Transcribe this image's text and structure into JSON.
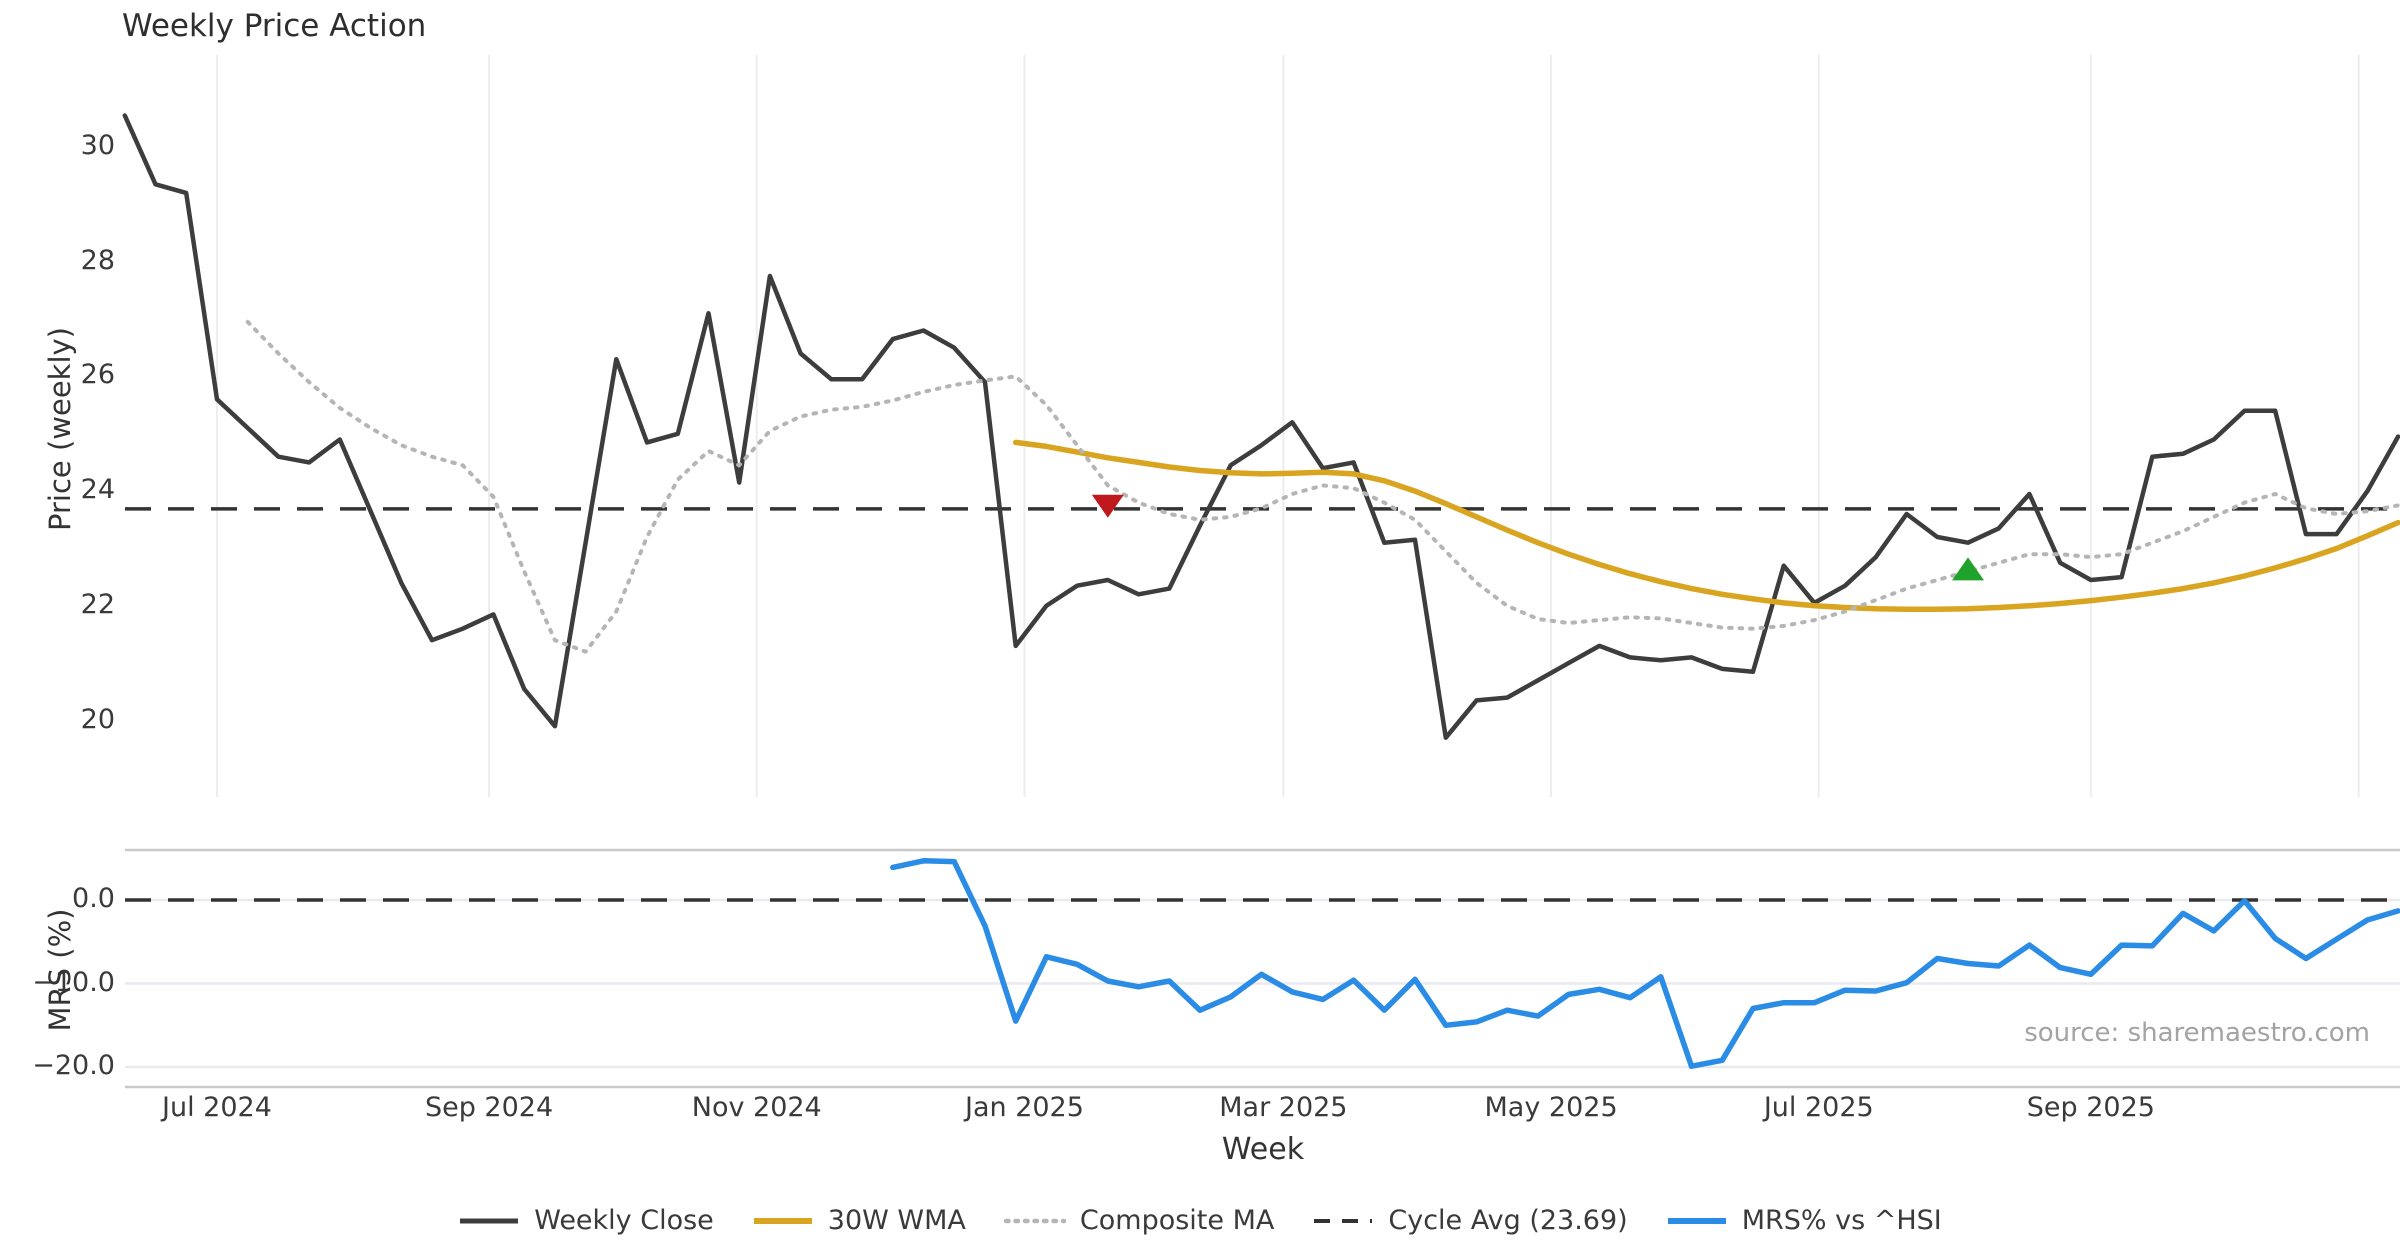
{
  "title": "Weekly Price Action",
  "xlabel": "Week",
  "source": "source: sharemaestro.com",
  "price_panel": {
    "ylabel": "Price (weekly)",
    "yticks": [
      "30",
      "28",
      "26",
      "24",
      "22",
      "20"
    ],
    "ytick_values": [
      30,
      28,
      26,
      24,
      22,
      20
    ]
  },
  "mrs_panel": {
    "ylabel": "MRS (%)",
    "yticks": [
      "0.0",
      "−10.0",
      "−20.0"
    ],
    "ytick_values": [
      0,
      -10,
      -20
    ]
  },
  "legend": {
    "items": [
      {
        "label": "Weekly Close",
        "style": "solid",
        "color_key": "close"
      },
      {
        "label": "30W WMA",
        "style": "solid",
        "color_key": "wma"
      },
      {
        "label": "Composite MA",
        "style": "dotted",
        "color_key": "composite"
      },
      {
        "label": "Cycle Avg (23.69)",
        "style": "dashed",
        "color_key": "cycle"
      },
      {
        "label": "MRS% vs ^HSI",
        "style": "solid",
        "color_key": "mrs"
      }
    ]
  },
  "colors": {
    "close": "#3d3d3d",
    "wma": "#d9a521",
    "composite": "#b5b5b5",
    "cycle": "#333333",
    "mrs": "#2b8ce6",
    "red_marker": "#bf181d",
    "green_marker": "#1fa32b",
    "grid": "#ededed",
    "mrs_grid": "#e9e9ef",
    "spine": "#c9c9c9"
  },
  "chart_data": {
    "type": "line",
    "title": "Weekly Price Action",
    "xlabel": "Week",
    "ylabel_top": "Price (weekly)",
    "ylabel_bottom": "MRS (%)",
    "cycle_avg": 23.69,
    "price_ylim": [
      19.3,
      31.2
    ],
    "mrs_ylim": [
      -22.5,
      6.0
    ],
    "legend_position": "bottom-center",
    "grid": "vertical-months-top, horizontal-bottom",
    "weeks": [
      "2024-06-10",
      "2024-06-17",
      "2024-06-24",
      "2024-07-01",
      "2024-07-08",
      "2024-07-15",
      "2024-07-22",
      "2024-07-29",
      "2024-08-05",
      "2024-08-12",
      "2024-08-19",
      "2024-08-26",
      "2024-09-02",
      "2024-09-09",
      "2024-09-16",
      "2024-09-23",
      "2024-09-30",
      "2024-10-07",
      "2024-10-14",
      "2024-10-21",
      "2024-10-28",
      "2024-11-04",
      "2024-11-11",
      "2024-11-18",
      "2024-11-25",
      "2024-12-02",
      "2024-12-09",
      "2024-12-16",
      "2024-12-23",
      "2024-12-30",
      "2025-01-06",
      "2025-01-13",
      "2025-01-20",
      "2025-01-27",
      "2025-02-03",
      "2025-02-10",
      "2025-02-17",
      "2025-02-24",
      "2025-03-03",
      "2025-03-10",
      "2025-03-17",
      "2025-03-24",
      "2025-03-31",
      "2025-04-07",
      "2025-04-14",
      "2025-04-21",
      "2025-04-28",
      "2025-05-05",
      "2025-05-12",
      "2025-05-19",
      "2025-05-26",
      "2025-06-02",
      "2025-06-09",
      "2025-06-16",
      "2025-06-23",
      "2025-06-30",
      "2025-07-07",
      "2025-07-14",
      "2025-07-21",
      "2025-07-28",
      "2025-08-04",
      "2025-08-11",
      "2025-08-18",
      "2025-08-25",
      "2025-09-01",
      "2025-09-08",
      "2025-09-15",
      "2025-09-22",
      "2025-09-29",
      "2025-10-06",
      "2025-10-13",
      "2025-10-20",
      "2025-10-27",
      "2025-11-03",
      "2025-11-10"
    ],
    "xticks": [
      {
        "label": "Jul 2024",
        "date": "2024-07-01"
      },
      {
        "label": "Sep 2024",
        "date": "2024-09-01"
      },
      {
        "label": "Nov 2024",
        "date": "2024-11-01"
      },
      {
        "label": "Jan 2025",
        "date": "2025-01-01"
      },
      {
        "label": "Mar 2025",
        "date": "2025-03-01"
      },
      {
        "label": "May 2025",
        "date": "2025-05-01"
      },
      {
        "label": "Jul 2025",
        "date": "2025-07-01"
      },
      {
        "label": "Sep 2025",
        "date": "2025-09-01"
      },
      {
        "label": "",
        "date": "2025-11-01"
      }
    ],
    "series": [
      {
        "name": "Weekly Close",
        "panel": "price",
        "color_key": "close",
        "style": "solid",
        "width": 4.5,
        "values": [
          30.55,
          29.35,
          29.2,
          25.6,
          25.1,
          24.6,
          24.5,
          24.9,
          23.65,
          22.4,
          21.4,
          21.6,
          21.85,
          20.55,
          19.9,
          23.1,
          26.3,
          24.85,
          25.0,
          27.1,
          24.15,
          27.75,
          26.4,
          25.95,
          25.95,
          26.65,
          26.8,
          26.5,
          25.9,
          21.3,
          22.0,
          22.35,
          22.45,
          22.2,
          22.3,
          23.4,
          24.45,
          24.8,
          25.2,
          24.4,
          24.5,
          23.1,
          23.15,
          19.7,
          20.35,
          20.4,
          20.7,
          21.0,
          21.3,
          21.1,
          21.05,
          21.1,
          20.9,
          20.85,
          22.7,
          22.05,
          22.35,
          22.85,
          23.6,
          23.2,
          23.1,
          23.35,
          23.95,
          22.75,
          22.45,
          22.5,
          24.6,
          24.65,
          24.9,
          25.4,
          25.4,
          23.25,
          23.25,
          24.0,
          24.95
        ]
      },
      {
        "name": "30W WMA",
        "panel": "price",
        "color_key": "wma",
        "style": "solid",
        "width": 5.5,
        "values": [
          null,
          null,
          null,
          null,
          null,
          null,
          null,
          null,
          null,
          null,
          null,
          null,
          null,
          null,
          null,
          null,
          null,
          null,
          null,
          null,
          null,
          null,
          null,
          null,
          null,
          null,
          null,
          null,
          null,
          24.85,
          24.78,
          24.68,
          24.58,
          24.5,
          24.42,
          24.36,
          24.32,
          24.3,
          24.31,
          24.33,
          24.3,
          24.18,
          24.0,
          23.78,
          23.55,
          23.32,
          23.1,
          22.9,
          22.72,
          22.56,
          22.42,
          22.3,
          22.2,
          22.12,
          22.05,
          22.0,
          21.97,
          21.95,
          21.94,
          21.94,
          21.95,
          21.97,
          22.0,
          22.04,
          22.09,
          22.15,
          22.22,
          22.3,
          22.4,
          22.52,
          22.66,
          22.82,
          23.0,
          23.22,
          23.45
        ]
      },
      {
        "name": "Composite MA",
        "panel": "price",
        "color_key": "composite",
        "style": "dotted",
        "width": 4,
        "values": [
          null,
          null,
          null,
          null,
          26.95,
          26.4,
          25.9,
          25.45,
          25.1,
          24.8,
          24.6,
          24.45,
          23.9,
          22.6,
          21.4,
          21.2,
          21.9,
          23.2,
          24.2,
          24.7,
          24.45,
          25.05,
          25.3,
          25.42,
          25.47,
          25.58,
          25.73,
          25.85,
          25.93,
          26.0,
          25.5,
          24.8,
          24.1,
          23.8,
          23.6,
          23.5,
          23.55,
          23.7,
          23.95,
          24.1,
          24.05,
          23.8,
          23.5,
          22.95,
          22.4,
          22.0,
          21.77,
          21.7,
          21.75,
          21.8,
          21.78,
          21.7,
          21.62,
          21.6,
          21.65,
          21.75,
          21.9,
          22.1,
          22.3,
          22.45,
          22.6,
          22.75,
          22.9,
          22.9,
          22.85,
          22.9,
          23.1,
          23.3,
          23.55,
          23.8,
          23.95,
          23.7,
          23.6,
          23.65,
          23.75
        ]
      },
      {
        "name": "MRS% vs ^HSI",
        "panel": "mrs",
        "color_key": "mrs",
        "style": "solid",
        "width": 5.5,
        "values": [
          null,
          null,
          null,
          null,
          null,
          null,
          null,
          null,
          null,
          null,
          null,
          null,
          null,
          null,
          null,
          null,
          null,
          null,
          null,
          null,
          null,
          null,
          null,
          null,
          null,
          3.9,
          4.7,
          4.6,
          -3.1,
          -14.5,
          -6.8,
          -7.7,
          -9.7,
          -10.4,
          -9.7,
          -13.2,
          -11.6,
          -8.9,
          -11.0,
          -11.9,
          -9.6,
          -13.2,
          -9.5,
          -15.0,
          -14.6,
          -13.2,
          -13.9,
          -11.3,
          -10.7,
          -11.7,
          -9.2,
          -19.9,
          -19.2,
          -13.0,
          -12.3,
          -12.3,
          -10.8,
          -10.9,
          -9.9,
          -7.0,
          -7.6,
          -7.9,
          -5.4,
          -8.1,
          -8.9,
          -5.4,
          -5.5,
          -1.6,
          -3.7,
          -0.1,
          -4.6,
          -7.0,
          -4.7,
          -2.4,
          -1.3
        ]
      }
    ],
    "markers": [
      {
        "name": "sell-signal",
        "shape": "triangle-down",
        "color_key": "red_marker",
        "week": "2025-01-20",
        "value": 23.78
      },
      {
        "name": "buy-signal",
        "shape": "triangle-up",
        "color_key": "green_marker",
        "week": "2025-08-04",
        "value": 22.6
      }
    ]
  }
}
